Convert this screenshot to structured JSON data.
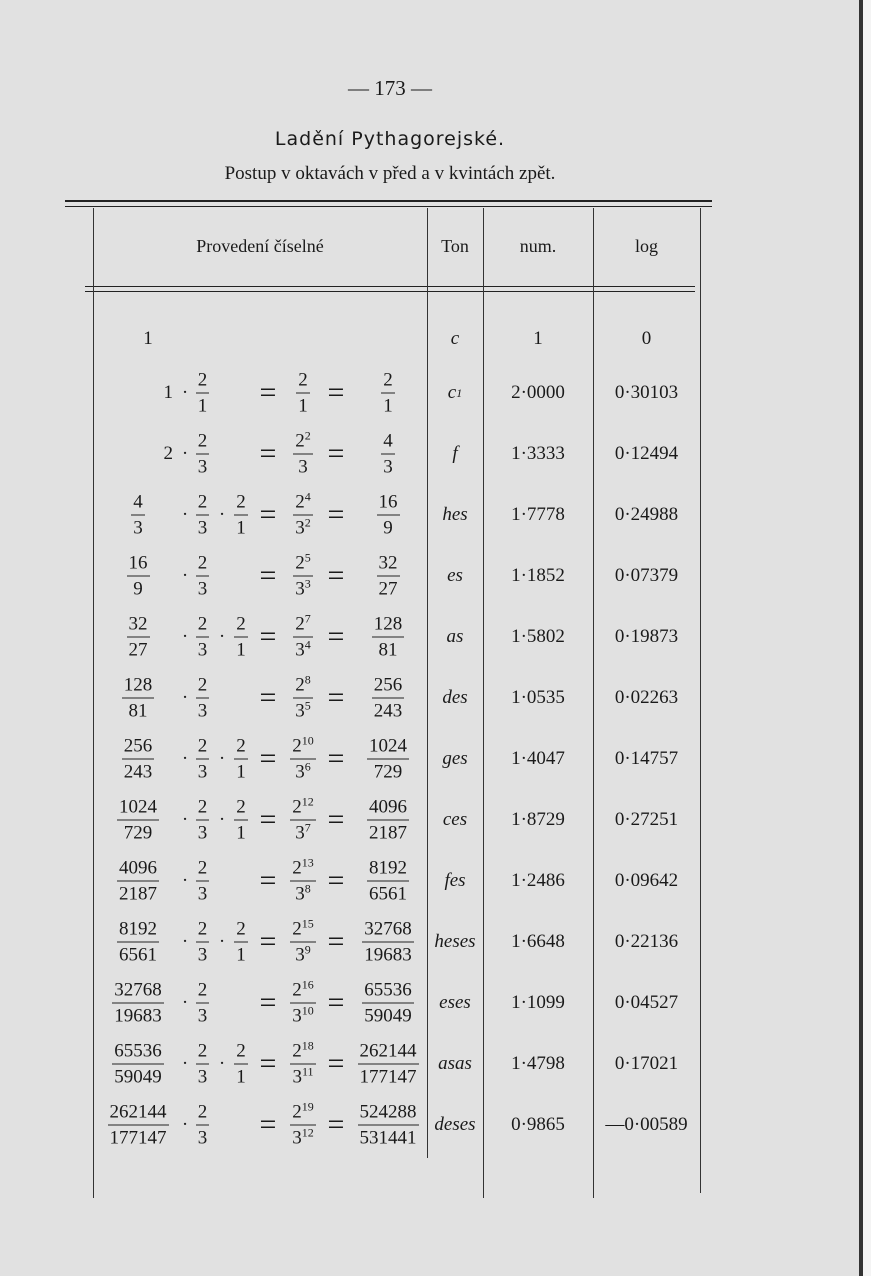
{
  "page_number": "— 173 —",
  "title": "Ladění Pythagorejské.",
  "subtitle": "Postup v oktavách v před a v kvintách zpět.",
  "headers": {
    "expr": "Provedení číselné",
    "ton": "Ton",
    "num": "num.",
    "log": "log"
  },
  "rows": [
    {
      "left": {
        "int": "1"
      },
      "mult": null,
      "extra": null,
      "mid": null,
      "result": null,
      "ton": "c",
      "ton_sup": "",
      "num": "1",
      "log": "0"
    },
    {
      "left": {
        "int": "1"
      },
      "mult": {
        "n": "2",
        "d": "1"
      },
      "extra": null,
      "mid": {
        "n": "2",
        "ne": "",
        "d": "1",
        "de": ""
      },
      "result": {
        "n": "2",
        "d": "1"
      },
      "ton": "c",
      "ton_sup": "1",
      "num": "2·0000",
      "log": "0·30103"
    },
    {
      "left": {
        "int": "2"
      },
      "mult": {
        "n": "2",
        "d": "3"
      },
      "extra": null,
      "mid": {
        "n": "2",
        "ne": "2",
        "d": "3",
        "de": ""
      },
      "result": {
        "n": "4",
        "d": "3"
      },
      "ton": "f",
      "ton_sup": "",
      "num": "1·3333",
      "log": "0·12494"
    },
    {
      "left": {
        "n": "4",
        "d": "3"
      },
      "mult": {
        "n": "2",
        "d": "3"
      },
      "extra": {
        "n": "2",
        "d": "1"
      },
      "mid": {
        "n": "2",
        "ne": "4",
        "d": "3",
        "de": "2"
      },
      "result": {
        "n": "16",
        "d": "9"
      },
      "ton": "hes",
      "ton_sup": "",
      "num": "1·7778",
      "log": "0·24988"
    },
    {
      "left": {
        "n": "16",
        "d": "9"
      },
      "mult": {
        "n": "2",
        "d": "3"
      },
      "extra": null,
      "mid": {
        "n": "2",
        "ne": "5",
        "d": "3",
        "de": "3"
      },
      "result": {
        "n": "32",
        "d": "27"
      },
      "ton": "es",
      "ton_sup": "",
      "num": "1·1852",
      "log": "0·07379"
    },
    {
      "left": {
        "n": "32",
        "d": "27"
      },
      "mult": {
        "n": "2",
        "d": "3"
      },
      "extra": {
        "n": "2",
        "d": "1"
      },
      "mid": {
        "n": "2",
        "ne": "7",
        "d": "3",
        "de": "4"
      },
      "result": {
        "n": "128",
        "d": "81"
      },
      "ton": "as",
      "ton_sup": "",
      "num": "1·5802",
      "log": "0·19873"
    },
    {
      "left": {
        "n": "128",
        "d": "81"
      },
      "mult": {
        "n": "2",
        "d": "3"
      },
      "extra": null,
      "mid": {
        "n": "2",
        "ne": "8",
        "d": "3",
        "de": "5"
      },
      "result": {
        "n": "256",
        "d": "243"
      },
      "ton": "des",
      "ton_sup": "",
      "num": "1·0535",
      "log": "0·02263"
    },
    {
      "left": {
        "n": "256",
        "d": "243"
      },
      "mult": {
        "n": "2",
        "d": "3"
      },
      "extra": {
        "n": "2",
        "d": "1"
      },
      "mid": {
        "n": "2",
        "ne": "10",
        "d": "3",
        "de": "6"
      },
      "result": {
        "n": "1024",
        "d": "729"
      },
      "ton": "ges",
      "ton_sup": "",
      "num": "1·4047",
      "log": "0·14757"
    },
    {
      "left": {
        "n": "1024",
        "d": "729"
      },
      "mult": {
        "n": "2",
        "d": "3"
      },
      "extra": {
        "n": "2",
        "d": "1"
      },
      "mid": {
        "n": "2",
        "ne": "12",
        "d": "3",
        "de": "7"
      },
      "result": {
        "n": "4096",
        "d": "2187"
      },
      "ton": "ces",
      "ton_sup": "",
      "num": "1·8729",
      "log": "0·27251"
    },
    {
      "left": {
        "n": "4096",
        "d": "2187"
      },
      "mult": {
        "n": "2",
        "d": "3"
      },
      "extra": null,
      "mid": {
        "n": "2",
        "ne": "13",
        "d": "3",
        "de": "8"
      },
      "result": {
        "n": "8192",
        "d": "6561"
      },
      "ton": "fes",
      "ton_sup": "",
      "num": "1·2486",
      "log": "0·09642"
    },
    {
      "left": {
        "n": "8192",
        "d": "6561"
      },
      "mult": {
        "n": "2",
        "d": "3"
      },
      "extra": {
        "n": "2",
        "d": "1"
      },
      "mid": {
        "n": "2",
        "ne": "15",
        "d": "3",
        "de": "9"
      },
      "result": {
        "n": "32768",
        "d": "19683"
      },
      "ton": "heses",
      "ton_sup": "",
      "num": "1·6648",
      "log": "0·22136"
    },
    {
      "left": {
        "n": "32768",
        "d": "19683"
      },
      "mult": {
        "n": "2",
        "d": "3"
      },
      "extra": null,
      "mid": {
        "n": "2",
        "ne": "16",
        "d": "3",
        "de": "10"
      },
      "result": {
        "n": "65536",
        "d": "59049"
      },
      "ton": "eses",
      "ton_sup": "",
      "num": "1·1099",
      "log": "0·04527"
    },
    {
      "left": {
        "n": "65536",
        "d": "59049"
      },
      "mult": {
        "n": "2",
        "d": "3"
      },
      "extra": {
        "n": "2",
        "d": "1"
      },
      "mid": {
        "n": "2",
        "ne": "18",
        "d": "3",
        "de": "11"
      },
      "result": {
        "n": "262144",
        "d": "177147"
      },
      "ton": "asas",
      "ton_sup": "",
      "num": "1·4798",
      "log": "0·17021"
    },
    {
      "left": {
        "n": "262144",
        "d": "177147"
      },
      "mult": {
        "n": "2",
        "d": "3"
      },
      "extra": null,
      "mid": {
        "n": "2",
        "ne": "19",
        "d": "3",
        "de": "12"
      },
      "result": {
        "n": "524288",
        "d": "531441"
      },
      "ton": "deses",
      "ton_sup": "",
      "num": "0·9865",
      "log": "—0·00589"
    }
  ],
  "symbols": {
    "dot": "·",
    "eq": "="
  }
}
